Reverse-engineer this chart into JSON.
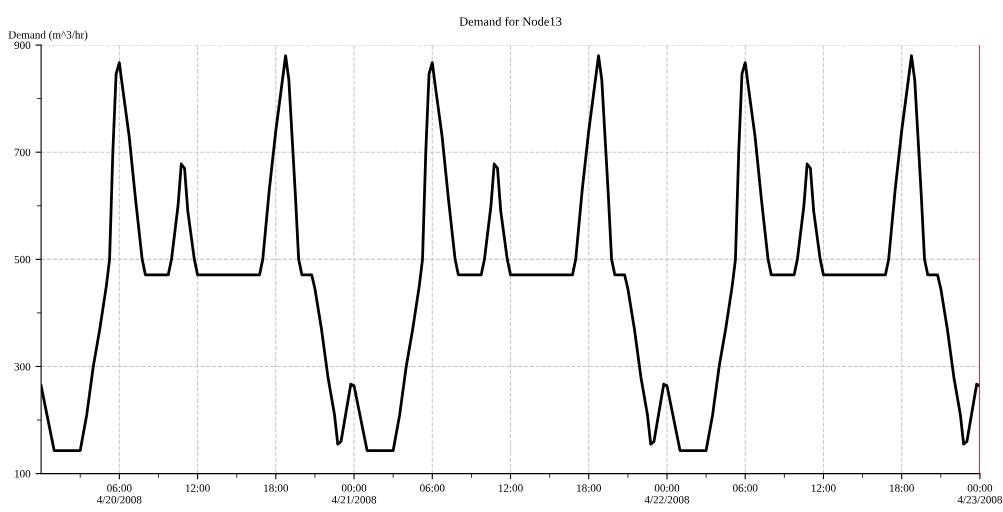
{
  "chart_data": {
    "type": "line",
    "title": "Demand for Node13",
    "ylabel": "Demand (m^3/hr)",
    "x": [
      "2008-04-20T00:00",
      "2008-04-20T01:00",
      "2008-04-20T03:00",
      "2008-04-20T03:30",
      "2008-04-20T04:00",
      "2008-04-20T04:30",
      "2008-04-20T05:00",
      "2008-04-20T05:15",
      "2008-04-20T05:30",
      "2008-04-20T05:45",
      "2008-04-20T06:00",
      "2008-04-20T06:15",
      "2008-04-20T06:45",
      "2008-04-20T07:15",
      "2008-04-20T07:45",
      "2008-04-20T08:00",
      "2008-04-20T09:45",
      "2008-04-20T10:00",
      "2008-04-20T10:30",
      "2008-04-20T10:45",
      "2008-04-20T11:00",
      "2008-04-20T11:15",
      "2008-04-20T11:45",
      "2008-04-20T12:00",
      "2008-04-20T16:45",
      "2008-04-20T17:00",
      "2008-04-20T17:30",
      "2008-04-20T18:00",
      "2008-04-20T18:45",
      "2008-04-20T19:00",
      "2008-04-20T19:30",
      "2008-04-20T19:45",
      "2008-04-20T20:00",
      "2008-04-20T20:45",
      "2008-04-20T21:00",
      "2008-04-20T21:30",
      "2008-04-20T22:00",
      "2008-04-20T22:30",
      "2008-04-20T22:45",
      "2008-04-20T23:00",
      "2008-04-20T23:45",
      "2008-04-21T00:00",
      "2008-04-21T01:00",
      "2008-04-21T03:00",
      "2008-04-21T03:30",
      "2008-04-21T04:00",
      "2008-04-21T04:30",
      "2008-04-21T05:00",
      "2008-04-21T05:15",
      "2008-04-21T05:30",
      "2008-04-21T05:45",
      "2008-04-21T06:00",
      "2008-04-21T06:15",
      "2008-04-21T06:45",
      "2008-04-21T07:15",
      "2008-04-21T07:45",
      "2008-04-21T08:00",
      "2008-04-21T09:45",
      "2008-04-21T10:00",
      "2008-04-21T10:30",
      "2008-04-21T10:45",
      "2008-04-21T11:00",
      "2008-04-21T11:15",
      "2008-04-21T11:45",
      "2008-04-21T12:00",
      "2008-04-21T16:45",
      "2008-04-21T17:00",
      "2008-04-21T17:30",
      "2008-04-21T18:00",
      "2008-04-21T18:45",
      "2008-04-21T19:00",
      "2008-04-21T19:30",
      "2008-04-21T19:45",
      "2008-04-21T20:00",
      "2008-04-21T20:45",
      "2008-04-21T21:00",
      "2008-04-21T21:30",
      "2008-04-21T22:00",
      "2008-04-21T22:30",
      "2008-04-21T22:45",
      "2008-04-21T23:00",
      "2008-04-21T23:45",
      "2008-04-22T00:00",
      "2008-04-22T01:00",
      "2008-04-22T03:00",
      "2008-04-22T03:30",
      "2008-04-22T04:00",
      "2008-04-22T04:30",
      "2008-04-22T05:00",
      "2008-04-22T05:15",
      "2008-04-22T05:30",
      "2008-04-22T05:45",
      "2008-04-22T06:00",
      "2008-04-22T06:15",
      "2008-04-22T06:45",
      "2008-04-22T07:15",
      "2008-04-22T07:45",
      "2008-04-22T08:00",
      "2008-04-22T09:45",
      "2008-04-22T10:00",
      "2008-04-22T10:30",
      "2008-04-22T10:45",
      "2008-04-22T11:00",
      "2008-04-22T11:15",
      "2008-04-22T11:45",
      "2008-04-22T12:00",
      "2008-04-22T16:45",
      "2008-04-22T17:00",
      "2008-04-22T17:30",
      "2008-04-22T18:00",
      "2008-04-22T18:45",
      "2008-04-22T19:00",
      "2008-04-22T19:30",
      "2008-04-22T19:45",
      "2008-04-22T20:00",
      "2008-04-22T20:45",
      "2008-04-22T21:00",
      "2008-04-22T21:30",
      "2008-04-22T22:00",
      "2008-04-22T22:30",
      "2008-04-22T22:45",
      "2008-04-22T23:00",
      "2008-04-22T23:45",
      "2008-04-23T00:00"
    ],
    "series": [
      {
        "color": "#000000",
        "values": [
          264,
          143,
          143,
          210,
          300,
          370,
          450,
          500,
          700,
          846,
          867,
          820,
          730,
          610,
          500,
          471,
          471,
          500,
          600,
          678,
          670,
          590,
          500,
          471,
          471,
          500,
          630,
          740,
          880,
          835,
          620,
          500,
          471,
          471,
          445,
          370,
          280,
          210,
          155,
          160,
          267,
          264,
          143,
          143,
          210,
          300,
          370,
          450,
          500,
          700,
          846,
          867,
          820,
          730,
          610,
          500,
          471,
          471,
          500,
          600,
          678,
          670,
          590,
          500,
          471,
          471,
          500,
          630,
          740,
          880,
          835,
          620,
          500,
          471,
          471,
          445,
          370,
          280,
          210,
          155,
          160,
          267,
          264,
          143,
          143,
          210,
          300,
          370,
          450,
          500,
          700,
          846,
          867,
          820,
          730,
          610,
          500,
          471,
          471,
          500,
          600,
          678,
          670,
          590,
          500,
          471,
          471,
          500,
          630,
          740,
          880,
          835,
          620,
          500,
          471,
          471,
          445,
          370,
          280,
          210,
          155,
          160,
          267,
          264
        ]
      }
    ],
    "xlim": [
      "2008-04-20T00:00",
      "2008-04-23T00:00"
    ],
    "ylim": [
      100,
      900
    ],
    "xticks": [
      {
        "value": "2008-04-20T03:00",
        "label": null
      },
      {
        "value": "2008-04-20T06:00",
        "label": "06:00\n4/20/2008"
      },
      {
        "value": "2008-04-20T09:00",
        "label": null
      },
      {
        "value": "2008-04-20T12:00",
        "label": "12:00"
      },
      {
        "value": "2008-04-20T15:00",
        "label": null
      },
      {
        "value": "2008-04-20T18:00",
        "label": "18:00"
      },
      {
        "value": "2008-04-20T21:00",
        "label": null
      },
      {
        "value": "2008-04-21T00:00",
        "label": "00:00\n4/21/2008"
      },
      {
        "value": "2008-04-21T03:00",
        "label": null
      },
      {
        "value": "2008-04-21T06:00",
        "label": "06:00"
      },
      {
        "value": "2008-04-21T09:00",
        "label": null
      },
      {
        "value": "2008-04-21T12:00",
        "label": "12:00"
      },
      {
        "value": "2008-04-21T15:00",
        "label": null
      },
      {
        "value": "2008-04-21T18:00",
        "label": "18:00"
      },
      {
        "value": "2008-04-21T21:00",
        "label": null
      },
      {
        "value": "2008-04-22T00:00",
        "label": "00:00\n4/22/2008"
      },
      {
        "value": "2008-04-22T03:00",
        "label": null
      },
      {
        "value": "2008-04-22T06:00",
        "label": "06:00"
      },
      {
        "value": "2008-04-22T09:00",
        "label": null
      },
      {
        "value": "2008-04-22T12:00",
        "label": "12:00"
      },
      {
        "value": "2008-04-22T15:00",
        "label": null
      },
      {
        "value": "2008-04-22T18:00",
        "label": "18:00"
      },
      {
        "value": "2008-04-22T21:00",
        "label": null
      },
      {
        "value": "2008-04-23T00:00",
        "label": "00:00\n4/23/2008"
      }
    ],
    "yticks": [
      100,
      {
        "value": 200,
        "label": null
      },
      300,
      {
        "value": 400,
        "label": null
      },
      500,
      {
        "value": 600,
        "label": null
      },
      700,
      {
        "value": 800,
        "label": null
      },
      900
    ],
    "grid": true,
    "line_style": "solid",
    "marker": "none",
    "ref_lines": [
      {
        "axis": "x",
        "value": "2008-04-23T00:00",
        "label": null,
        "color": "#ff0000",
        "line_style": "solid"
      }
    ]
  }
}
